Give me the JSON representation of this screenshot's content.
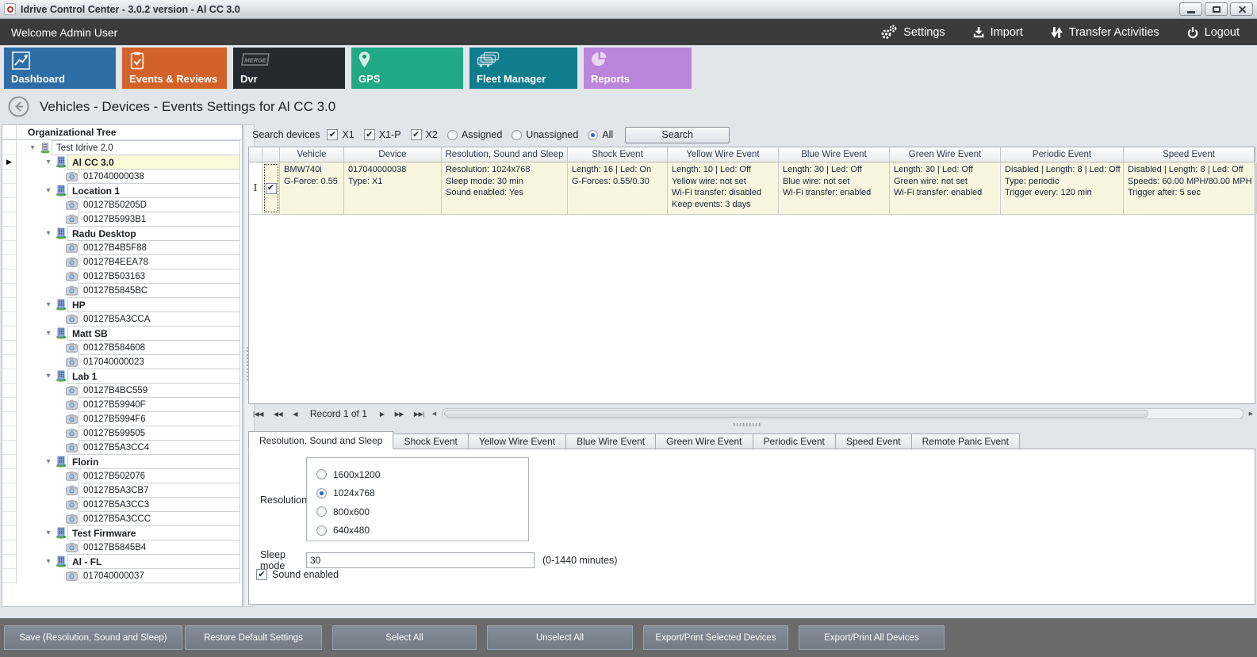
{
  "window": {
    "title": "Idrive Control Center - 3.0.2 version - Al CC 3.0",
    "controls": [
      "minimize",
      "maximize",
      "close"
    ]
  },
  "navbar": {
    "welcome": "Welcome Admin User",
    "items": [
      {
        "icon": "gears-icon",
        "label": "Settings"
      },
      {
        "icon": "import-icon",
        "label": "Import"
      },
      {
        "icon": "transfer-icon",
        "label": "Transfer Activities"
      },
      {
        "icon": "power-icon",
        "label": "Logout"
      }
    ]
  },
  "module_tabs": [
    {
      "label": "Dashboard",
      "icon": "chart-icon",
      "color": "#2E6DA6"
    },
    {
      "label": "Events & Reviews",
      "icon": "clipboard-check-icon",
      "color": "#D2622A"
    },
    {
      "label": "Dvr",
      "icon": "merge-icon",
      "color": "#26292E"
    },
    {
      "label": "GPS",
      "icon": "map-pin-icon",
      "color": "#21A886"
    },
    {
      "label": "Fleet Manager",
      "icon": "fleet-icon",
      "color": "#0F7D8C"
    },
    {
      "label": "Reports",
      "icon": "pie-icon",
      "color": "#BC85DC"
    }
  ],
  "breadcrumb": {
    "title": "Vehicles - Devices - Events Settings for Al CC 3.0"
  },
  "tree": {
    "header": "Organizational Tree",
    "root": "Test Idrive 2.0",
    "groups": [
      {
        "name": "Al CC 3.0",
        "selected": true,
        "devices": [
          "017040000038"
        ]
      },
      {
        "name": "Location 1",
        "devices": [
          "00127B50205D",
          "00127B5993B1"
        ]
      },
      {
        "name": "Radu Desktop",
        "devices": [
          "00127B4B5F88",
          "00127B4EEA78",
          "00127B503163",
          "00127B5845BC"
        ]
      },
      {
        "name": "HP",
        "devices": [
          "00127B5A3CCA"
        ]
      },
      {
        "name": "Matt SB",
        "devices": [
          "00127B584608",
          "017040000023"
        ]
      },
      {
        "name": "Lab 1",
        "devices": [
          "00127B4BC559",
          "00127B59940F",
          "00127B5994F6",
          "00127B599505",
          "00127B5A3CC4"
        ]
      },
      {
        "name": "Florin",
        "devices": [
          "00127B502076",
          "00127B5A3CB7",
          "00127B5A3CC3",
          "00127B5A3CCC"
        ]
      },
      {
        "name": "Test Firmware",
        "devices": [
          "00127B5845B4"
        ]
      },
      {
        "name": "Al - FL",
        "devices": [
          "017040000037"
        ]
      }
    ]
  },
  "search": {
    "label": "Search devices",
    "checkboxes": [
      {
        "label": "X1",
        "checked": true
      },
      {
        "label": "X1-P",
        "checked": true
      },
      {
        "label": "X2",
        "checked": true
      }
    ],
    "radios": [
      {
        "label": "Assigned",
        "selected": false
      },
      {
        "label": "Unassigned",
        "selected": false
      },
      {
        "label": "All",
        "selected": true
      }
    ],
    "button": "Search"
  },
  "grid": {
    "columns": [
      "Vehicle",
      "Device",
      "Resolution, Sound and Sleep",
      "Shock Event",
      "Yellow Wire Event",
      "Blue Wire Event",
      "Green Wire Event",
      "Periodic Event",
      "Speed Event"
    ],
    "row": {
      "checked": true,
      "cells": [
        [
          "BMW740i",
          "G-Force: 0.55"
        ],
        [
          "017040000038",
          "Type: X1"
        ],
        [
          "Resolution: 1024x768",
          "Sleep mode: 30 min",
          "Sound enabled: Yes"
        ],
        [
          "Length: 16 | Led: On",
          "G-Forces: 0.55/0.30"
        ],
        [
          "Length: 10 | Led: Off",
          "Yellow wire: not set",
          "Wi-Fi transfer: disabled",
          "Keep events: 3 days"
        ],
        [
          "Length: 30 | Led: Off",
          "Blue wire: not set",
          "Wi-Fi transfer: enabled"
        ],
        [
          "Length: 30 | Led: Off",
          "Green wire: not set",
          "Wi-Fi transfer: enabled"
        ],
        [
          "Disabled | Length: 8 | Led: Off",
          "Type: periodic",
          "Trigger every: 120 min"
        ],
        [
          "Disabled | Length: 8 | Led: Off",
          "Speeds: 60.00 MPH/80.00 MPH",
          "Trigger after: 5 sec"
        ]
      ]
    }
  },
  "record_nav": {
    "label": "Record 1 of 1"
  },
  "settings_tabs": {
    "active": "Resolution, Sound and Sleep",
    "tabs": [
      "Resolution, Sound and Sleep",
      "Shock Event",
      "Yellow Wire Event",
      "Blue Wire Event",
      "Green Wire Event",
      "Periodic Event",
      "Speed Event",
      "Remote Panic Event"
    ]
  },
  "resolution": {
    "label": "Resolution",
    "options": [
      "1600x1200",
      "1024x768",
      "800x600",
      "640x480"
    ],
    "selected": "1024x768",
    "sleep_label": "Sleep mode",
    "sleep_value": "30",
    "sleep_hint": "(0-1440 minutes)",
    "sound_label": "Sound enabled",
    "sound_checked": true
  },
  "footer": {
    "buttons": [
      "Save (Resolution, Sound and Sleep)",
      "Restore Default Settings",
      "Select All",
      "Unselect All",
      "Export/Print Selected Devices",
      "Export/Print All Devices"
    ]
  }
}
